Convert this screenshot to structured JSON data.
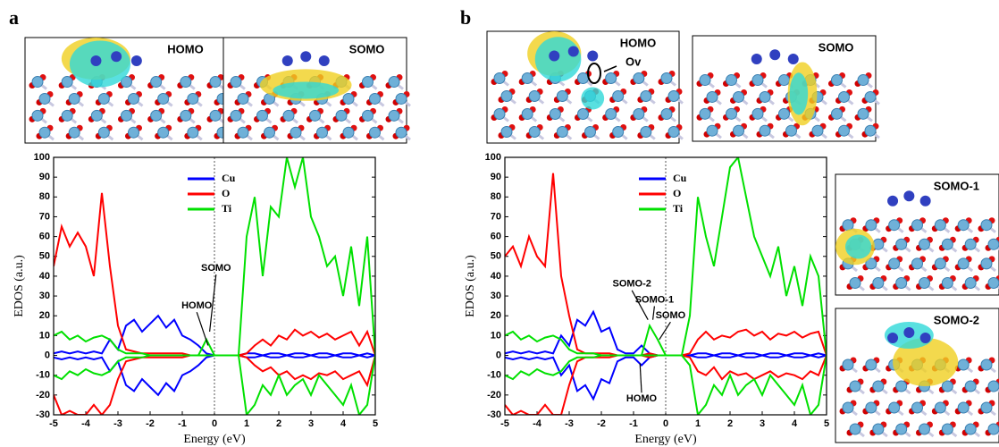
{
  "chart_data": [
    {
      "type": "line",
      "panel_label": "a",
      "xlabel": "Energy  (eV)",
      "ylabel": "EDOS  (a.u.)",
      "xlim": [
        -5,
        5
      ],
      "xticks": [
        -5,
        -4,
        -3,
        -2,
        -1,
        0,
        1,
        2,
        3,
        4,
        5
      ],
      "ylim": [
        -30,
        100
      ],
      "yticks": [
        -30,
        -20,
        -10,
        0,
        10,
        20,
        30,
        40,
        50,
        60,
        70,
        80,
        90,
        100
      ],
      "x": [
        -5,
        -4.75,
        -4.5,
        -4.25,
        -4,
        -3.75,
        -3.5,
        -3.25,
        -3,
        -2.75,
        -2.5,
        -2.25,
        -2,
        -1.75,
        -1.5,
        -1.25,
        -1,
        -0.75,
        -0.5,
        -0.25,
        0,
        0.25,
        0.5,
        0.75,
        1,
        1.25,
        1.5,
        1.75,
        2,
        2.25,
        2.5,
        2.75,
        3,
        3.25,
        3.5,
        3.75,
        4,
        4.25,
        4.5,
        4.75,
        5
      ],
      "series": [
        {
          "name": "Cu",
          "color": "#0000ff",
          "values": [
            1,
            2,
            1,
            2,
            1,
            2,
            1,
            8,
            3,
            15,
            18,
            12,
            16,
            20,
            14,
            18,
            10,
            8,
            5,
            1,
            0,
            0,
            0,
            0,
            1,
            1,
            0,
            1,
            1,
            0,
            1,
            1,
            0,
            1,
            1,
            0,
            1,
            1,
            0,
            1,
            0
          ],
          "values_down": [
            -1,
            -2,
            -1,
            -2,
            -1,
            -2,
            -1,
            -8,
            -3,
            -15,
            -18,
            -12,
            -16,
            -20,
            -14,
            -18,
            -10,
            -8,
            -5,
            -1,
            0,
            0,
            0,
            0,
            -1,
            -1,
            0,
            -1,
            -1,
            0,
            -1,
            -1,
            0,
            -1,
            -1,
            0,
            -1,
            -1,
            0,
            -1,
            0
          ]
        },
        {
          "name": "O",
          "color": "#ff0000",
          "values": [
            45,
            65,
            55,
            62,
            55,
            40,
            82,
            45,
            15,
            3,
            2,
            1,
            1,
            1,
            1,
            1,
            1,
            0,
            0,
            0,
            0,
            0,
            0,
            0,
            1,
            5,
            8,
            5,
            10,
            8,
            13,
            10,
            12,
            9,
            11,
            8,
            10,
            12,
            5,
            12,
            0
          ],
          "values_down": [
            -20,
            -30,
            -28,
            -30,
            -30,
            -25,
            -30,
            -25,
            -12,
            -3,
            -2,
            -1,
            -1,
            -1,
            -1,
            -1,
            -1,
            0,
            0,
            0,
            0,
            0,
            0,
            0,
            -1,
            -5,
            -8,
            -6,
            -10,
            -8,
            -12,
            -10,
            -12,
            -9,
            -10,
            -8,
            -12,
            -10,
            -8,
            -15,
            0
          ]
        },
        {
          "name": "Ti",
          "color": "#00e000",
          "values": [
            10,
            12,
            8,
            10,
            7,
            9,
            10,
            8,
            3,
            1,
            1,
            1,
            0,
            0,
            0,
            0,
            0,
            0,
            0,
            8,
            0,
            0,
            0,
            0,
            60,
            80,
            40,
            75,
            70,
            100,
            85,
            100,
            70,
            60,
            45,
            50,
            30,
            55,
            25,
            60,
            0
          ],
          "values_down": [
            -10,
            -12,
            -8,
            -10,
            -7,
            -9,
            -10,
            -8,
            -3,
            -1,
            -1,
            -1,
            0,
            0,
            0,
            0,
            0,
            0,
            0,
            0,
            0,
            0,
            0,
            0,
            -30,
            -25,
            -15,
            -20,
            -10,
            -20,
            -15,
            -12,
            -20,
            -10,
            -15,
            -20,
            -25,
            -15,
            -30,
            -25,
            0
          ]
        }
      ],
      "annotations": [
        "HOMO",
        "SOMO"
      ],
      "insets": [
        "HOMO",
        "SOMO"
      ]
    },
    {
      "type": "line",
      "panel_label": "b",
      "xlabel": "Energy  (eV)",
      "ylabel": "EDOS  (a.u.)",
      "xlim": [
        -5,
        5
      ],
      "xticks": [
        -5,
        -4,
        -3,
        -2,
        -1,
        0,
        1,
        2,
        3,
        4,
        5
      ],
      "ylim": [
        -30,
        100
      ],
      "yticks": [
        -30,
        -20,
        -10,
        0,
        10,
        20,
        30,
        40,
        50,
        60,
        70,
        80,
        90,
        100
      ],
      "x": [
        -5,
        -4.75,
        -4.5,
        -4.25,
        -4,
        -3.75,
        -3.5,
        -3.25,
        -3,
        -2.75,
        -2.5,
        -2.25,
        -2,
        -1.75,
        -1.5,
        -1.25,
        -1,
        -0.75,
        -0.5,
        -0.25,
        0,
        0.25,
        0.5,
        0.75,
        1,
        1.25,
        1.5,
        1.75,
        2,
        2.25,
        2.5,
        2.75,
        3,
        3.25,
        3.5,
        3.75,
        4,
        4.25,
        4.5,
        4.75,
        5
      ],
      "series": [
        {
          "name": "Cu",
          "color": "#0000ff",
          "values": [
            1,
            2,
            1,
            2,
            1,
            2,
            1,
            10,
            5,
            18,
            15,
            22,
            12,
            14,
            3,
            1,
            1,
            5,
            1,
            0,
            0,
            0,
            0,
            0,
            1,
            1,
            0,
            1,
            1,
            0,
            1,
            1,
            0,
            1,
            1,
            0,
            1,
            1,
            0,
            1,
            0
          ],
          "values_down": [
            -1,
            -2,
            -1,
            -2,
            -1,
            -2,
            -1,
            -10,
            -5,
            -18,
            -15,
            -22,
            -12,
            -14,
            -3,
            -1,
            -1,
            -5,
            -1,
            0,
            0,
            0,
            0,
            0,
            -1,
            -1,
            0,
            -1,
            -1,
            0,
            -1,
            -1,
            0,
            -1,
            -1,
            0,
            -1,
            -1,
            0,
            -1,
            0
          ]
        },
        {
          "name": "O",
          "color": "#ff0000",
          "values": [
            50,
            55,
            45,
            60,
            50,
            45,
            92,
            40,
            20,
            3,
            1,
            1,
            1,
            1,
            0,
            0,
            0,
            0,
            1,
            0,
            0,
            0,
            0,
            1,
            8,
            12,
            8,
            10,
            9,
            12,
            13,
            10,
            12,
            8,
            11,
            10,
            12,
            9,
            11,
            12,
            0
          ],
          "values_down": [
            -25,
            -30,
            -28,
            -30,
            -30,
            -25,
            -30,
            -30,
            -15,
            -3,
            -1,
            -1,
            -1,
            -1,
            0,
            0,
            0,
            0,
            -1,
            0,
            0,
            0,
            0,
            -1,
            -8,
            -10,
            -6,
            -12,
            -8,
            -10,
            -9,
            -12,
            -10,
            -8,
            -11,
            -9,
            -10,
            -12,
            -8,
            -10,
            0
          ]
        },
        {
          "name": "Ti",
          "color": "#00e000",
          "values": [
            10,
            12,
            8,
            10,
            7,
            9,
            10,
            8,
            3,
            1,
            1,
            1,
            0,
            0,
            0,
            0,
            0,
            0,
            15,
            8,
            0,
            0,
            0,
            20,
            80,
            60,
            45,
            70,
            95,
            100,
            80,
            60,
            50,
            40,
            55,
            30,
            45,
            25,
            50,
            40,
            0
          ],
          "values_down": [
            -10,
            -12,
            -8,
            -10,
            -7,
            -9,
            -10,
            -8,
            -3,
            -1,
            -1,
            -1,
            0,
            0,
            0,
            0,
            0,
            0,
            0,
            0,
            0,
            0,
            0,
            -5,
            -30,
            -25,
            -15,
            -20,
            -10,
            -20,
            -15,
            -12,
            -20,
            -10,
            -15,
            -20,
            -25,
            -15,
            -30,
            -25,
            0
          ]
        }
      ],
      "annotations": [
        "SOMO-2",
        "SOMO-1",
        "SOMO",
        "HOMO"
      ],
      "insets": [
        "HOMO",
        "SOMO",
        "SOMO-1",
        "SOMO-2"
      ],
      "inset_notes": [
        "Ov"
      ]
    }
  ]
}
